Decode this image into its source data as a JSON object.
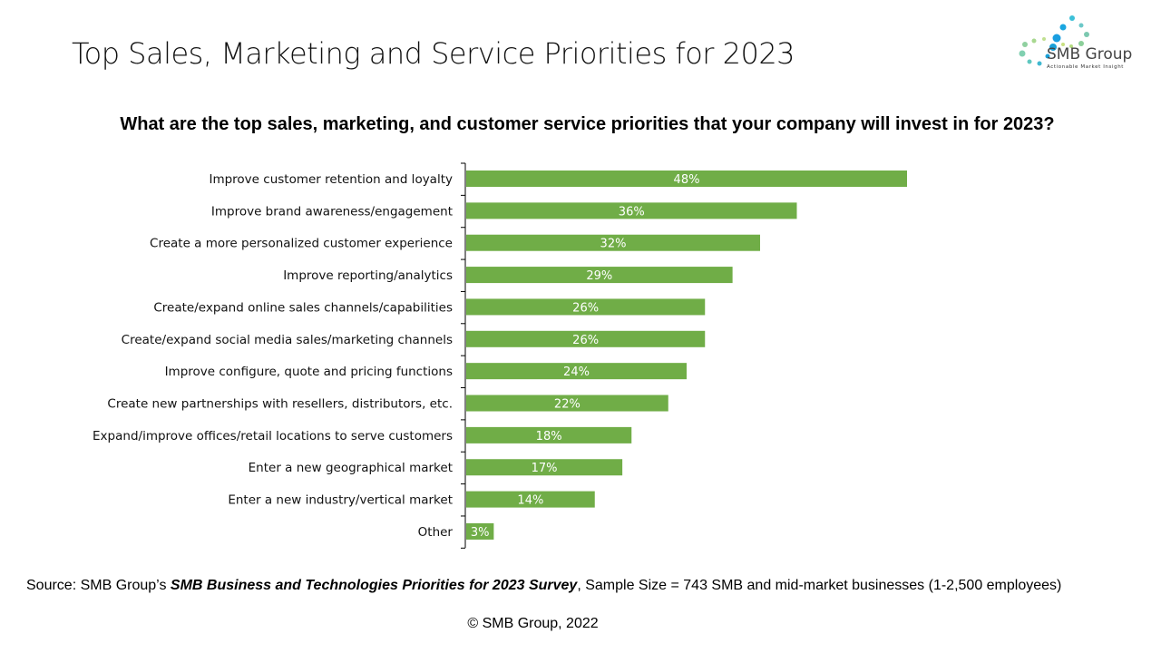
{
  "header": {
    "title": "Top Sales, Marketing and Service Priorities for 2023",
    "logo_name": "SMB Group",
    "logo_tagline": "Actionable Market Insight"
  },
  "chart_data": {
    "type": "bar",
    "orientation": "horizontal",
    "title": "What are the top sales, marketing, and customer service priorities that your company will  invest in for 2023?",
    "xlabel": "",
    "ylabel": "",
    "xlim": [
      0,
      100
    ],
    "grid": false,
    "bar_color": "#70AD47",
    "categories": [
      "Improve customer retention and loyalty",
      "Improve brand awareness/engagement",
      "Create a more personalized customer experience",
      "Improve reporting/analytics",
      "Create/expand online sales channels/capabilities",
      "Create/expand social media sales/marketing channels",
      "Improve configure, quote and pricing functions",
      "Create new partnerships with resellers, distributors, etc.",
      "Expand/improve offices/retail locations to serve customers",
      "Enter a new geographical market",
      "Enter a new industry/vertical market",
      "Other"
    ],
    "values": [
      48,
      36,
      32,
      29,
      26,
      26,
      24,
      22,
      18,
      17,
      14,
      3
    ],
    "data_labels": [
      "48%",
      "36%",
      "32%",
      "29%",
      "26%",
      "26%",
      "24%",
      "22%",
      "18%",
      "17%",
      "14%",
      "3%"
    ]
  },
  "footer": {
    "source_prefix": "Source: SMB Group’s ",
    "source_title": "SMB Business and Technologies Priorities for 2023  Survey",
    "source_suffix": ", Sample Size = 743 SMB and mid-market businesses (1-2,500 employees)",
    "copyright": "© SMB Group,  2022"
  }
}
